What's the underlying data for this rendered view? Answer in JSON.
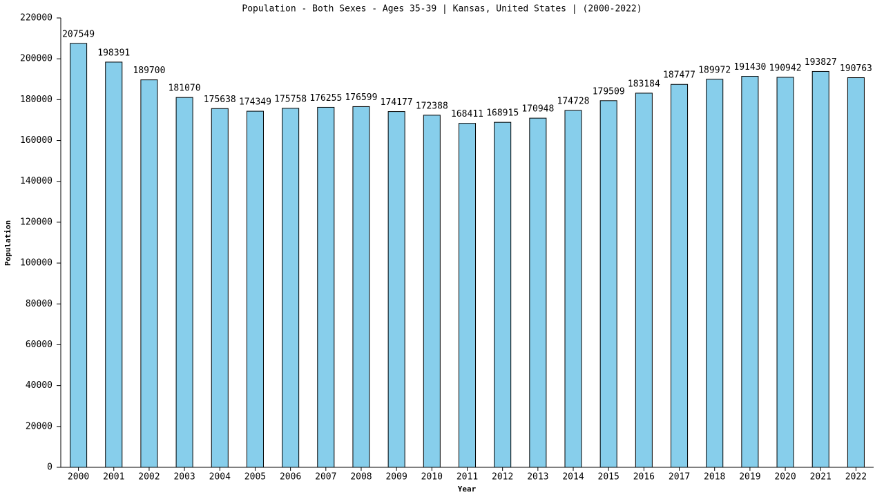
{
  "chart_data": {
    "type": "bar",
    "title": "Population - Both Sexes - Ages 35-39 | Kansas, United States |  (2000-2022)",
    "x_label": "Year",
    "y_label": "Population",
    "categories": [
      "2000",
      "2001",
      "2002",
      "2003",
      "2004",
      "2005",
      "2006",
      "2007",
      "2008",
      "2009",
      "2010",
      "2011",
      "2012",
      "2013",
      "2014",
      "2015",
      "2016",
      "2017",
      "2018",
      "2019",
      "2020",
      "2021",
      "2022"
    ],
    "values": [
      207549,
      198391,
      189700,
      181070,
      175638,
      174349,
      175758,
      176255,
      176599,
      174177,
      172388,
      168411,
      168915,
      170948,
      174728,
      179509,
      183184,
      187477,
      189972,
      191430,
      190942,
      193827,
      190763
    ],
    "color": "#87ceeb",
    "ylim": [
      0,
      220000
    ],
    "yticks": [
      0,
      20000,
      40000,
      60000,
      80000,
      100000,
      120000,
      140000,
      160000,
      180000,
      200000,
      220000
    ]
  }
}
